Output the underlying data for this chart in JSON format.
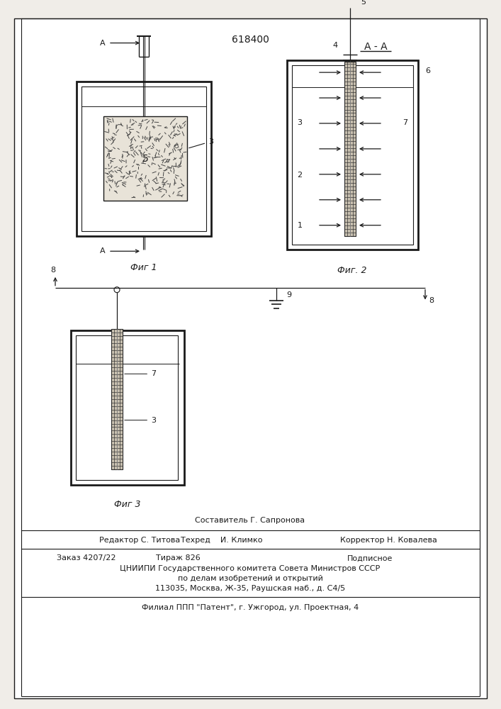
{
  "patent_number": "618400",
  "fig1_label": "Фиг 1",
  "fig2_label": "Фиг. 2",
  "fig3_label": "Фиг 3",
  "aa_label": "A - A",
  "footer_composer": "Составитель Г. Сапронова",
  "footer_editor": "Редактор С. Титова",
  "footer_tekhred": "Техред    И. Климко",
  "footer_corrector": "Корректор Н. Ковалева",
  "footer_order": "Заказ 4207/22",
  "footer_tirazh": "Тираж 826",
  "footer_podp": "Подписное",
  "footer_cniip": "ЦНИИПИ Государственного комитета Совета Министров СССР",
  "footer_po_delam": "по делам изобретений и открытий",
  "footer_address": "113035, Москва, Ж-35, Раушская наб., д. С4/5",
  "footer_filial": "Филиал ППП \"Патент\", г. Ужгород, ул. Проектная, 4",
  "bg_color": "#f0ede8",
  "line_color": "#1a1a1a"
}
